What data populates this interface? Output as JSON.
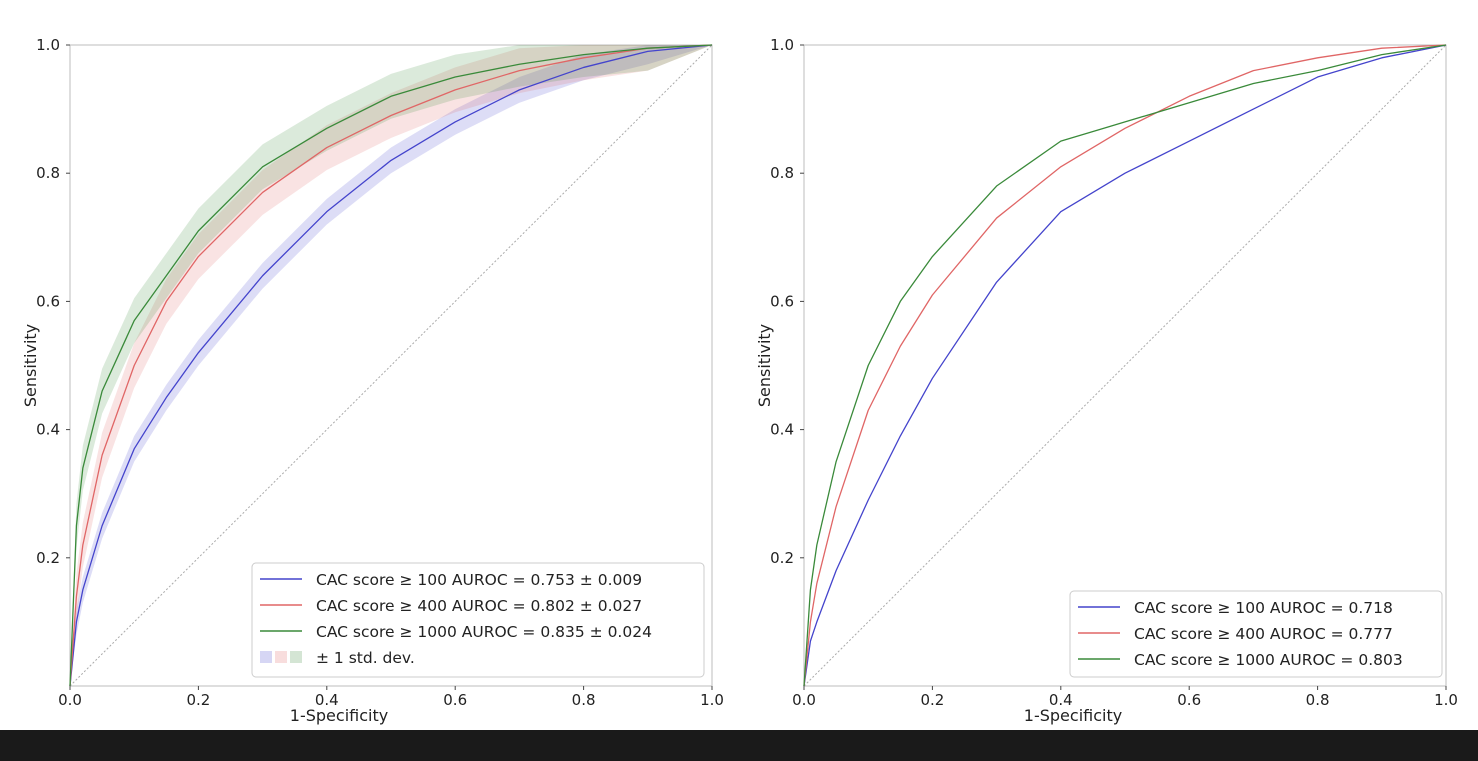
{
  "chart_data": [
    {
      "type": "line",
      "panel": "left",
      "xlabel": "1-Specificity",
      "ylabel": "Sensitivity",
      "xlim": [
        0,
        1
      ],
      "ylim": [
        0,
        1
      ],
      "xticks": [
        "0.0",
        "0.2",
        "0.4",
        "0.6",
        "0.8",
        "1.0"
      ],
      "yticks": [
        "0.2",
        "0.4",
        "0.6",
        "0.8",
        "1.0"
      ],
      "grid": false,
      "legend_position": "lower-right",
      "diagonal_reference": true,
      "band_legend_label": "± 1 std. dev.",
      "series": [
        {
          "name": "CAC score ≥ 100 AUROC = 0.753 ± 0.009",
          "color": "#4444cc",
          "x": [
            0,
            0.01,
            0.02,
            0.05,
            0.1,
            0.15,
            0.2,
            0.3,
            0.4,
            0.5,
            0.6,
            0.7,
            0.8,
            0.9,
            1.0
          ],
          "y": [
            0,
            0.1,
            0.15,
            0.25,
            0.37,
            0.45,
            0.52,
            0.64,
            0.74,
            0.82,
            0.88,
            0.93,
            0.965,
            0.99,
            1.0
          ],
          "band": 0.02
        },
        {
          "name": "CAC score ≥ 400 AUROC = 0.802 ± 0.027",
          "color": "#e06666",
          "x": [
            0,
            0.01,
            0.02,
            0.05,
            0.1,
            0.15,
            0.2,
            0.3,
            0.4,
            0.5,
            0.6,
            0.7,
            0.8,
            0.9,
            1.0
          ],
          "y": [
            0,
            0.14,
            0.22,
            0.36,
            0.5,
            0.6,
            0.67,
            0.77,
            0.84,
            0.89,
            0.93,
            0.96,
            0.98,
            0.995,
            1.0
          ],
          "band": 0.035
        },
        {
          "name": "CAC score ≥ 1000 AUROC = 0.835 ± 0.024",
          "color": "#3a8a3a",
          "x": [
            0,
            0.01,
            0.02,
            0.05,
            0.1,
            0.15,
            0.2,
            0.3,
            0.4,
            0.5,
            0.6,
            0.7,
            0.8,
            0.9,
            1.0
          ],
          "y": [
            0,
            0.25,
            0.34,
            0.46,
            0.57,
            0.64,
            0.71,
            0.81,
            0.87,
            0.92,
            0.95,
            0.97,
            0.985,
            0.995,
            1.0
          ],
          "band": 0.035
        }
      ]
    },
    {
      "type": "line",
      "panel": "right",
      "xlabel": "1-Specificity",
      "ylabel": "Sensitivity",
      "xlim": [
        0,
        1
      ],
      "ylim": [
        0,
        1
      ],
      "xticks": [
        "0.0",
        "0.2",
        "0.4",
        "0.6",
        "0.8",
        "1.0"
      ],
      "yticks": [
        "0.2",
        "0.4",
        "0.6",
        "0.8",
        "1.0"
      ],
      "grid": false,
      "legend_position": "lower-right",
      "diagonal_reference": true,
      "series": [
        {
          "name": "CAC score ≥ 100 AUROC = 0.718",
          "color": "#4444cc",
          "x": [
            0,
            0.01,
            0.02,
            0.05,
            0.1,
            0.15,
            0.2,
            0.3,
            0.4,
            0.5,
            0.6,
            0.7,
            0.8,
            0.9,
            1.0
          ],
          "y": [
            0,
            0.07,
            0.1,
            0.18,
            0.29,
            0.39,
            0.48,
            0.63,
            0.74,
            0.8,
            0.85,
            0.9,
            0.95,
            0.98,
            1.0
          ],
          "band": 0
        },
        {
          "name": "CAC score ≥ 400 AUROC = 0.777",
          "color": "#e06666",
          "x": [
            0,
            0.01,
            0.02,
            0.05,
            0.1,
            0.15,
            0.2,
            0.3,
            0.4,
            0.5,
            0.6,
            0.7,
            0.8,
            0.9,
            1.0
          ],
          "y": [
            0,
            0.1,
            0.16,
            0.28,
            0.43,
            0.53,
            0.61,
            0.73,
            0.81,
            0.87,
            0.92,
            0.96,
            0.98,
            0.995,
            1.0
          ],
          "band": 0
        },
        {
          "name": "CAC score ≥ 1000 AUROC = 0.803",
          "color": "#3a8a3a",
          "x": [
            0,
            0.01,
            0.02,
            0.05,
            0.1,
            0.15,
            0.2,
            0.3,
            0.4,
            0.5,
            0.6,
            0.7,
            0.8,
            0.9,
            1.0
          ],
          "y": [
            0,
            0.15,
            0.22,
            0.35,
            0.5,
            0.6,
            0.67,
            0.78,
            0.85,
            0.88,
            0.91,
            0.94,
            0.96,
            0.985,
            1.0
          ],
          "band": 0
        }
      ]
    }
  ]
}
